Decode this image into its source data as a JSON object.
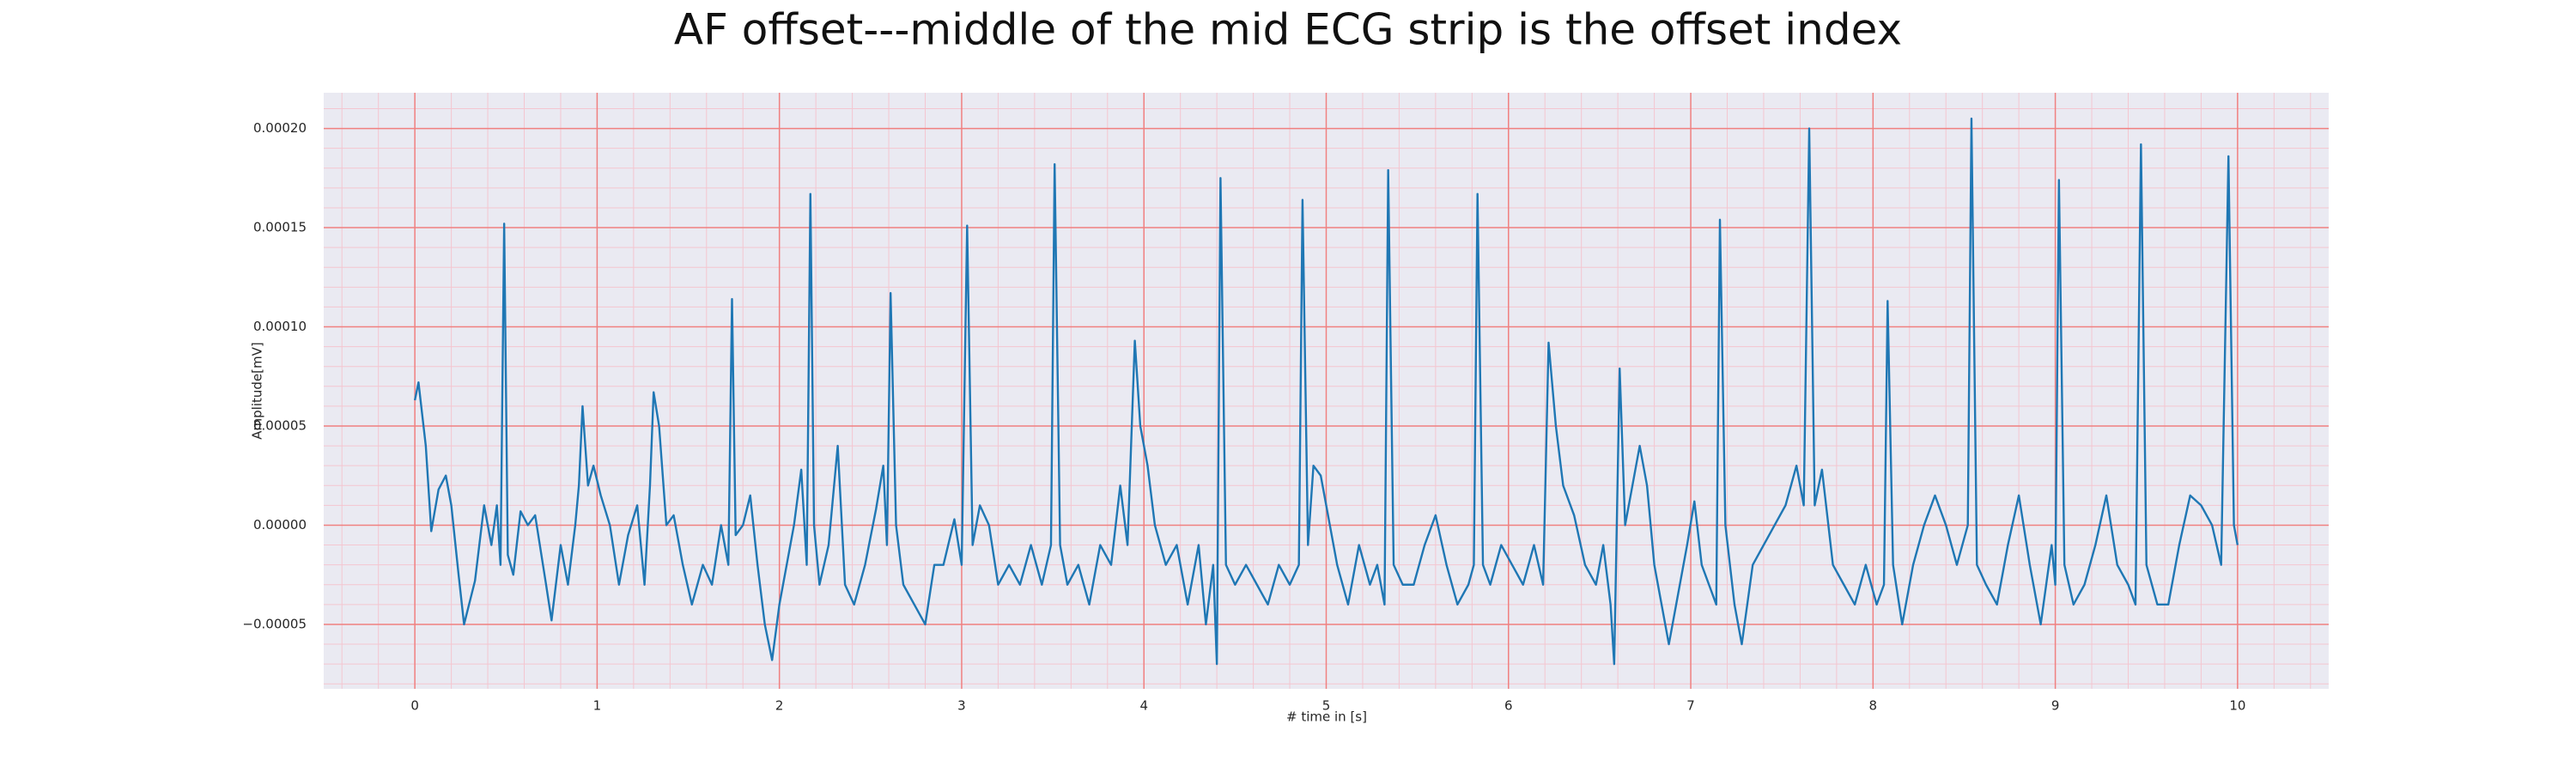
{
  "chart_data": {
    "type": "line",
    "title": "AF offset---middle of the mid ECG strip is the offset index",
    "xlabel": "# time in [s]",
    "ylabel": "Amplitude[mV]",
    "xlim": [
      -0.5,
      10.5
    ],
    "ylim": [
      -8.25e-05,
      0.000218
    ],
    "xticks": [
      0,
      1,
      2,
      3,
      4,
      5,
      6,
      7,
      8,
      9,
      10
    ],
    "yticks": [
      {
        "value": -5e-05,
        "label": "−0.00005"
      },
      {
        "value": 0,
        "label": "0.00000"
      },
      {
        "value": 5e-05,
        "label": "0.00005"
      },
      {
        "value": 0.0001,
        "label": "0.00010"
      },
      {
        "value": 0.00015,
        "label": "0.00015"
      },
      {
        "value": 0.0002,
        "label": "0.00020"
      }
    ],
    "grid": true,
    "minor_grid": true,
    "grid_color": "#f08080",
    "minor_grid_color": "#f4c6d0",
    "background": "#eaeaf2",
    "series": [
      {
        "color": "#1f77b4",
        "x": [
          0,
          0.02,
          0.06,
          0.09,
          0.13,
          0.17,
          0.2,
          0.24,
          0.27,
          0.33,
          0.38,
          0.42,
          0.45,
          0.47,
          0.49,
          0.51,
          0.54,
          0.58,
          0.62,
          0.66,
          0.72,
          0.75,
          0.8,
          0.84,
          0.88,
          0.9,
          0.92,
          0.95,
          0.98,
          1.02,
          1.07,
          1.12,
          1.17,
          1.22,
          1.26,
          1.29,
          1.31,
          1.34,
          1.38,
          1.42,
          1.47,
          1.52,
          1.58,
          1.63,
          1.68,
          1.72,
          1.74,
          1.76,
          1.8,
          1.84,
          1.88,
          1.92,
          1.96,
          2.0,
          2.04,
          2.08,
          2.12,
          2.15,
          2.17,
          2.19,
          2.22,
          2.27,
          2.32,
          2.36,
          2.41,
          2.47,
          2.53,
          2.57,
          2.59,
          2.61,
          2.64,
          2.68,
          2.74,
          2.8,
          2.85,
          2.9,
          2.96,
          3.0,
          3.03,
          3.06,
          3.1,
          3.15,
          3.2,
          3.26,
          3.32,
          3.38,
          3.44,
          3.49,
          3.51,
          3.54,
          3.58,
          3.64,
          3.7,
          3.76,
          3.82,
          3.87,
          3.91,
          3.95,
          3.98,
          4.02,
          4.06,
          4.12,
          4.18,
          4.24,
          4.3,
          4.34,
          4.38,
          4.4,
          4.42,
          4.45,
          4.5,
          4.56,
          4.62,
          4.68,
          4.74,
          4.8,
          4.85,
          4.87,
          4.9,
          4.93,
          4.97,
          5.02,
          5.06,
          5.12,
          5.18,
          5.24,
          5.28,
          5.32,
          5.34,
          5.37,
          5.42,
          5.48,
          5.54,
          5.6,
          5.66,
          5.72,
          5.78,
          5.81,
          5.83,
          5.86,
          5.9,
          5.96,
          6.02,
          6.08,
          6.14,
          6.19,
          6.22,
          6.26,
          6.3,
          6.36,
          6.42,
          6.48,
          6.52,
          6.56,
          6.58,
          6.61,
          6.64,
          6.68,
          6.72,
          6.76,
          6.8,
          6.84,
          6.88,
          6.92,
          6.98,
          7.02,
          7.06,
          7.1,
          7.14,
          7.16,
          7.19,
          7.24,
          7.28,
          7.34,
          7.4,
          7.46,
          7.52,
          7.58,
          7.62,
          7.65,
          7.68,
          7.72,
          7.78,
          7.84,
          7.9,
          7.96,
          8.02,
          8.06,
          8.08,
          8.11,
          8.16,
          8.22,
          8.28,
          8.34,
          8.4,
          8.46,
          8.52,
          8.54,
          8.57,
          8.62,
          8.68,
          8.74,
          8.8,
          8.86,
          8.92,
          8.98,
          9.0,
          9.02,
          9.05,
          9.1,
          9.16,
          9.22,
          9.28,
          9.34,
          9.4,
          9.44,
          9.47,
          9.5,
          9.56,
          9.62,
          9.68,
          9.74,
          9.8,
          9.86,
          9.91,
          9.95,
          9.98,
          10.0
        ],
        "values": [
          6.3e-05,
          7.2e-05,
          4e-05,
          -3e-06,
          1.8e-05,
          2.5e-05,
          1e-05,
          -2.5e-05,
          -5e-05,
          -2.8e-05,
          1e-05,
          -1e-05,
          1e-05,
          -2e-05,
          0.000152,
          -1.5e-05,
          -2.5e-05,
          7e-06,
          0,
          5e-06,
          -3e-05,
          -4.8e-05,
          -1e-05,
          -3e-05,
          0,
          2e-05,
          6e-05,
          2e-05,
          3e-05,
          1.5e-05,
          0,
          -3e-05,
          -5e-06,
          1e-05,
          -3e-05,
          2e-05,
          6.7e-05,
          5e-05,
          0,
          5e-06,
          -2e-05,
          -4e-05,
          -2e-05,
          -3e-05,
          0,
          -2e-05,
          0.000114,
          -5e-06,
          0,
          1.5e-05,
          -2e-05,
          -5e-05,
          -6.8e-05,
          -4e-05,
          -2e-05,
          0,
          2.8e-05,
          -2e-05,
          0.000167,
          0,
          -3e-05,
          -1e-05,
          4e-05,
          -3e-05,
          -4e-05,
          -2e-05,
          8e-06,
          3e-05,
          -1e-05,
          0.000117,
          0,
          -3e-05,
          -4e-05,
          -5e-05,
          -2e-05,
          -2e-05,
          3e-06,
          -2e-05,
          0.000151,
          -1e-05,
          1e-05,
          0,
          -3e-05,
          -2e-05,
          -3e-05,
          -1e-05,
          -3e-05,
          -1e-05,
          0.000182,
          -1e-05,
          -3e-05,
          -2e-05,
          -4e-05,
          -1e-05,
          -2e-05,
          2e-05,
          -1e-05,
          9.3e-05,
          5e-05,
          3e-05,
          0,
          -2e-05,
          -1e-05,
          -4e-05,
          -1e-05,
          -5e-05,
          -2e-05,
          -7e-05,
          0.000175,
          -2e-05,
          -3e-05,
          -2e-05,
          -3e-05,
          -4e-05,
          -2e-05,
          -3e-05,
          -2e-05,
          0.000164,
          -1e-05,
          3e-05,
          2.5e-05,
          0,
          -2e-05,
          -4e-05,
          -1e-05,
          -3e-05,
          -2e-05,
          -4e-05,
          0.000179,
          -2e-05,
          -3e-05,
          -3e-05,
          -1e-05,
          5e-06,
          -2e-05,
          -4e-05,
          -3e-05,
          -2e-05,
          0.000167,
          -2e-05,
          -3e-05,
          -1e-05,
          -2e-05,
          -3e-05,
          -1e-05,
          -3e-05,
          9.2e-05,
          5e-05,
          2e-05,
          5e-06,
          -2e-05,
          -3e-05,
          -1e-05,
          -4e-05,
          -7e-05,
          7.9e-05,
          0,
          2e-05,
          4e-05,
          2e-05,
          -2e-05,
          -4e-05,
          -6e-05,
          -4e-05,
          -1e-05,
          1.2e-05,
          -2e-05,
          -3e-05,
          -4e-05,
          0.000154,
          0,
          -4e-05,
          -6e-05,
          -2e-05,
          -1e-05,
          0,
          1e-05,
          3e-05,
          1e-05,
          0.0002,
          1e-05,
          2.8e-05,
          -2e-05,
          -3e-05,
          -4e-05,
          -2e-05,
          -4e-05,
          -3e-05,
          0.000113,
          -2e-05,
          -5e-05,
          -2e-05,
          0,
          1.5e-05,
          0,
          -2e-05,
          0,
          0.000205,
          -2e-05,
          -3e-05,
          -4e-05,
          -1e-05,
          1.5e-05,
          -2e-05,
          -5e-05,
          -1e-05,
          -3e-05,
          0.000174,
          -2e-05,
          -4e-05,
          -3e-05,
          -1e-05,
          1.5e-05,
          -2e-05,
          -3e-05,
          -4e-05,
          0.000192,
          -2e-05,
          -4e-05,
          -4e-05,
          -1e-05,
          1.5e-05,
          1e-05,
          0,
          -2e-05,
          0.000186,
          0,
          -1e-05
        ]
      }
    ]
  }
}
